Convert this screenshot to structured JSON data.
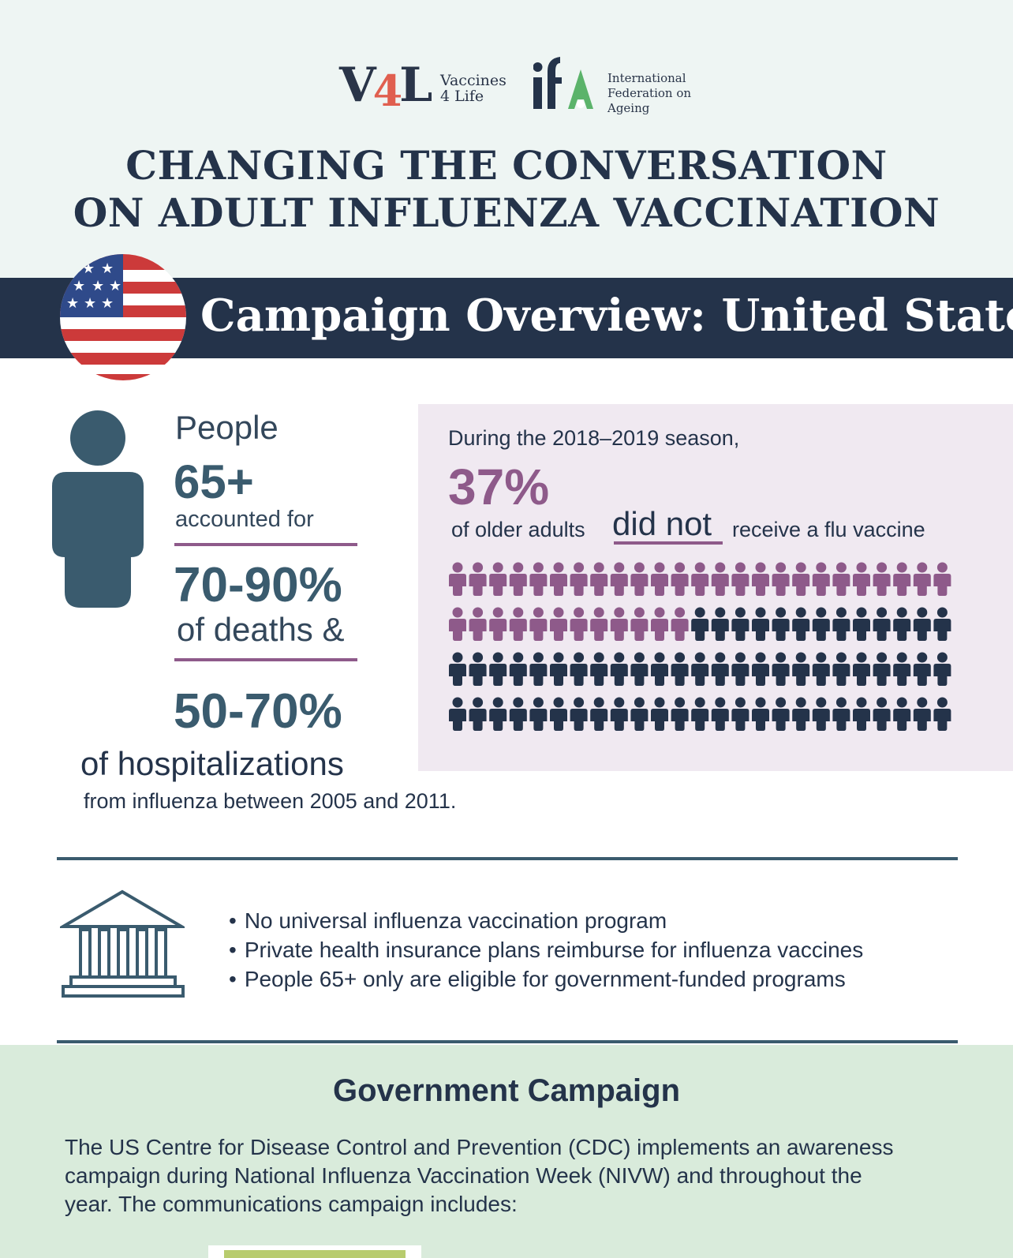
{
  "header": {
    "v4l_logo": "V4L",
    "v4l_name_line1": "Vaccines",
    "v4l_name_line2": "4 Life",
    "ifa_logo": "ifA",
    "ifa_name_line1": "International",
    "ifa_name_line2": "Federation on",
    "ifa_name_line3": "Ageing",
    "title_line1": "CHANGING THE CONVERSATION",
    "title_line2": "ON ADULT INFLUENZA VACCINATION"
  },
  "banner": {
    "title": "Campaign Overview: United States",
    "flag_icon": "us-flag-icon"
  },
  "stats": {
    "people": "People",
    "age": "65+",
    "accounted": "accounted for",
    "deaths_pct": "70-90%",
    "deaths_label": "of deaths &",
    "hosp_pct": "50-70%",
    "hosp_label": "of hospitalizations",
    "period": "from influenza between 2005 and 2011."
  },
  "season": {
    "intro": "During the 2018–2019 season,",
    "percent": "37%",
    "of_adults": "of older adults",
    "did_not": "did not",
    "receive": "receive a flu vaccine",
    "unvaccinated_share": 0.37,
    "icon_count": 100,
    "colors": {
      "unvaccinated": "#8e5a8a",
      "vaccinated": "#24334a"
    }
  },
  "policy": {
    "icon": "government-building-icon",
    "bullets": [
      "No universal influenza vaccination program",
      "Private health insurance plans reimburse for influenza vaccines",
      "People 65+ only are eligible for government-funded programs"
    ]
  },
  "government": {
    "title": "Government Campaign",
    "text_line1": "The US Centre for Disease Control and Prevention (CDC) implements an awareness",
    "text_line2": "campaign during National Influenza Vaccination Week (NIVW) and throughout the",
    "text_line3": "year. The communications campaign includes:"
  },
  "colors": {
    "navy": "#24334a",
    "teal": "#3a5b6e",
    "purple": "#8e5a8a",
    "header_bg": "#eef5f3",
    "panel_bg": "#f0e9f1",
    "gov_bg": "#d9ebdb",
    "accent_red": "#e05f4f",
    "accent_green": "#5bb36a"
  }
}
